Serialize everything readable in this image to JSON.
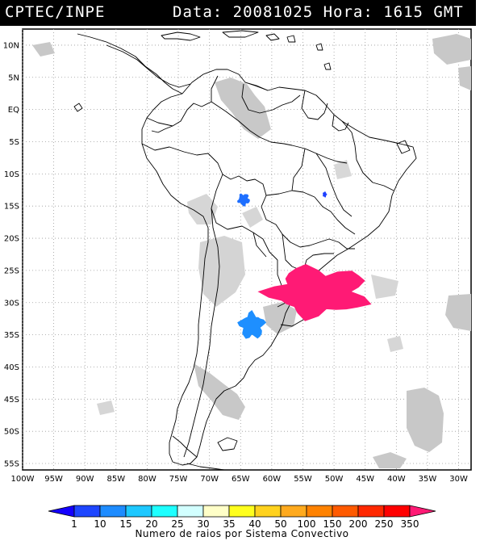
{
  "header": {
    "org": "CPTEC/INPE",
    "datetime": "Data: 20081025 Hora: 1615 GMT"
  },
  "map": {
    "lat_labels": [
      "10N",
      "5N",
      "EQ",
      "5S",
      "10S",
      "15S",
      "20S",
      "25S",
      "30S",
      "35S",
      "40S",
      "45S",
      "50S",
      "55S"
    ],
    "lon_labels": [
      "100W",
      "95W",
      "90W",
      "85W",
      "80W",
      "75W",
      "70W",
      "65W",
      "60W",
      "55W",
      "50W",
      "45W",
      "40W",
      "35W",
      "30W"
    ],
    "lon_range": [
      -100,
      -28
    ],
    "lat_range": [
      -56,
      12.5
    ],
    "systems": [
      {
        "name": "Bolivia cluster",
        "color": "#1e6fff",
        "lon": -64.5,
        "lat": -14.0,
        "rx": 1.0,
        "ry": 1.0
      },
      {
        "name": "Central Brazil cell",
        "color": "#1e40ff",
        "lon": -51.5,
        "lat": -13.2,
        "rx": 0.3,
        "ry": 0.4
      },
      {
        "name": "Central Argentina cluster",
        "color": "#1e8fff",
        "lon": -63.2,
        "lat": -33.6,
        "rx": 2.2,
        "ry": 2.2
      },
      {
        "name": "Southern Brazil / Uruguay MCS",
        "color": "#ff1a75",
        "lon": -52.5,
        "lat": -28.3,
        "rx": 9.0,
        "ry": 4.3
      }
    ]
  },
  "colorbar": {
    "ticks": [
      "1",
      "10",
      "15",
      "20",
      "25",
      "30",
      "35",
      "40",
      "50",
      "100",
      "150",
      "200",
      "250",
      "350"
    ],
    "colors": [
      "#1400ff",
      "#1e46ff",
      "#1e8cff",
      "#1ec8ff",
      "#1effff",
      "#d2ffff",
      "#ffffc8",
      "#ffff1e",
      "#ffd21e",
      "#ffaa1e",
      "#ff8200",
      "#ff5a00",
      "#ff2800",
      "#ff0000",
      "#ff1a75"
    ],
    "caption": "Numero de raios por Sistema Convectivo"
  }
}
